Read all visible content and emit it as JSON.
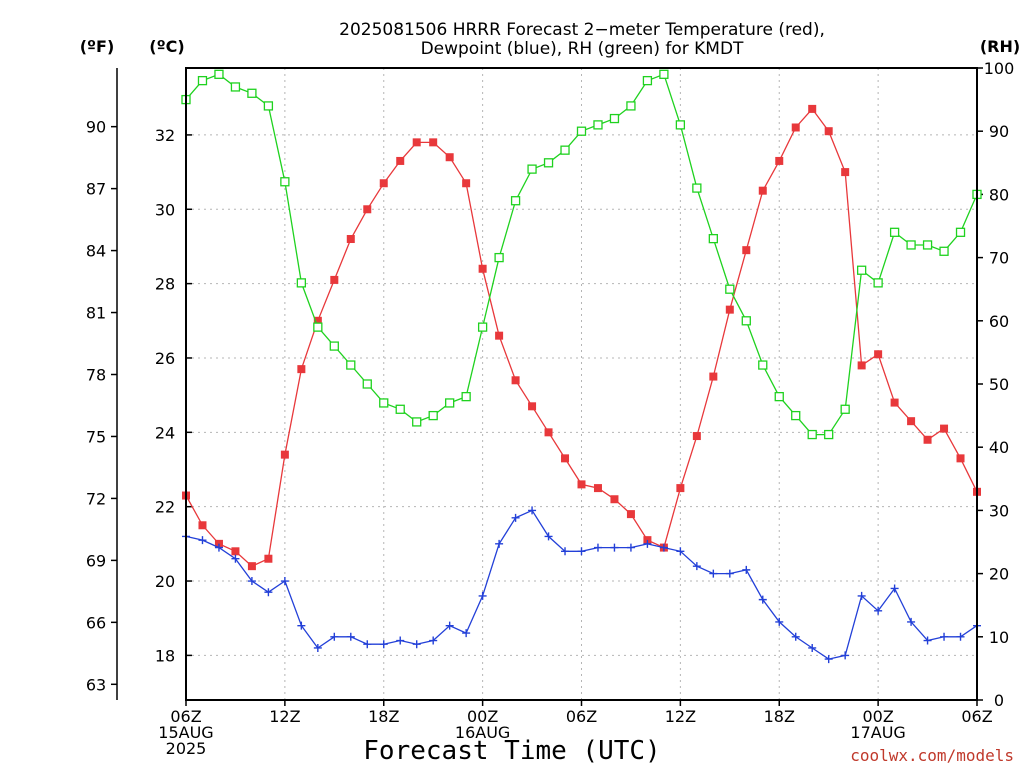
{
  "chart_data": {
    "type": "line",
    "title_lines": [
      "2025081506 HRRR Forecast 2−meter Temperature (red),",
      "Dewpoint (blue), RH (green) for KMDT"
    ],
    "left_unit_label": "(ºF)",
    "left2_unit_label": "(ºC)",
    "right_unit_label": "(RH)",
    "xlabel": "Forecast Time (UTC)",
    "credit": "coolwx.com/models",
    "x_tick_labels": [
      {
        "hour": 0,
        "lines": [
          "06Z",
          "15AUG",
          "2025"
        ]
      },
      {
        "hour": 6,
        "lines": [
          "12Z"
        ]
      },
      {
        "hour": 12,
        "lines": [
          "18Z"
        ]
      },
      {
        "hour": 18,
        "lines": [
          "00Z",
          "16AUG"
        ]
      },
      {
        "hour": 24,
        "lines": [
          "06Z"
        ]
      },
      {
        "hour": 30,
        "lines": [
          "12Z"
        ]
      },
      {
        "hour": 36,
        "lines": [
          "18Z"
        ]
      },
      {
        "hour": 42,
        "lines": [
          "00Z",
          "17AUG"
        ]
      },
      {
        "hour": 48,
        "lines": [
          "06Z"
        ]
      }
    ],
    "x_range_hours": [
      0,
      48
    ],
    "celsius_ticks": [
      "18",
      "20",
      "22",
      "24",
      "26",
      "28",
      "30",
      "32"
    ],
    "fahrenheit_ticks": [
      "63",
      "66",
      "69",
      "72",
      "75",
      "78",
      "81",
      "84",
      "87",
      "90"
    ],
    "rh_ticks": [
      "0",
      "10",
      "20",
      "30",
      "40",
      "50",
      "60",
      "70",
      "80",
      "90",
      "100"
    ],
    "celsius_range": [
      16.8,
      33.8
    ],
    "rh_range": [
      0,
      100
    ],
    "grid": true,
    "colors": {
      "temperature": "#e8383b",
      "dewpoint": "#2340d8",
      "rh": "#1fd21f"
    },
    "series": [
      {
        "name": "Temperature",
        "unit": "°C",
        "marker": "filled-square",
        "values": [
          22.3,
          21.5,
          21.0,
          20.8,
          20.4,
          20.6,
          23.4,
          25.7,
          27.0,
          28.1,
          29.2,
          30.0,
          30.7,
          31.3,
          31.8,
          31.8,
          31.4,
          30.7,
          28.4,
          26.6,
          25.4,
          24.7,
          24.0,
          23.3,
          22.6,
          22.5,
          22.2,
          21.8,
          21.1,
          20.9,
          22.5,
          23.9,
          25.5,
          27.3,
          28.9,
          30.5,
          31.3,
          32.2,
          32.7,
          32.1,
          31.0,
          25.8,
          26.1,
          24.8,
          24.3,
          23.8,
          24.1,
          23.3,
          22.4
        ]
      },
      {
        "name": "Dewpoint",
        "unit": "°C",
        "marker": "plus",
        "values": [
          21.2,
          21.1,
          20.9,
          20.6,
          20.0,
          19.7,
          20.0,
          18.8,
          18.2,
          18.5,
          18.5,
          18.3,
          18.3,
          18.4,
          18.3,
          18.4,
          18.8,
          18.6,
          19.6,
          21.0,
          21.7,
          21.9,
          21.2,
          20.8,
          20.8,
          20.9,
          20.9,
          20.9,
          21.0,
          20.9,
          20.8,
          20.4,
          20.2,
          20.2,
          20.3,
          19.5,
          18.9,
          18.5,
          18.2,
          17.9,
          18.0,
          19.6,
          19.2,
          19.8,
          18.9,
          18.4,
          18.5,
          18.5,
          18.8
        ]
      },
      {
        "name": "RH",
        "unit": "%",
        "marker": "open-square",
        "values": [
          95,
          98,
          99,
          97,
          96,
          94,
          82,
          66,
          59,
          56,
          53,
          50,
          47,
          46,
          44,
          45,
          47,
          48,
          59,
          70,
          79,
          84,
          85,
          87,
          90,
          91,
          92,
          94,
          98,
          99,
          91,
          81,
          73,
          65,
          60,
          53,
          48,
          45,
          42,
          42,
          46,
          68,
          66,
          74,
          72,
          72,
          71,
          74,
          80
        ]
      }
    ]
  }
}
